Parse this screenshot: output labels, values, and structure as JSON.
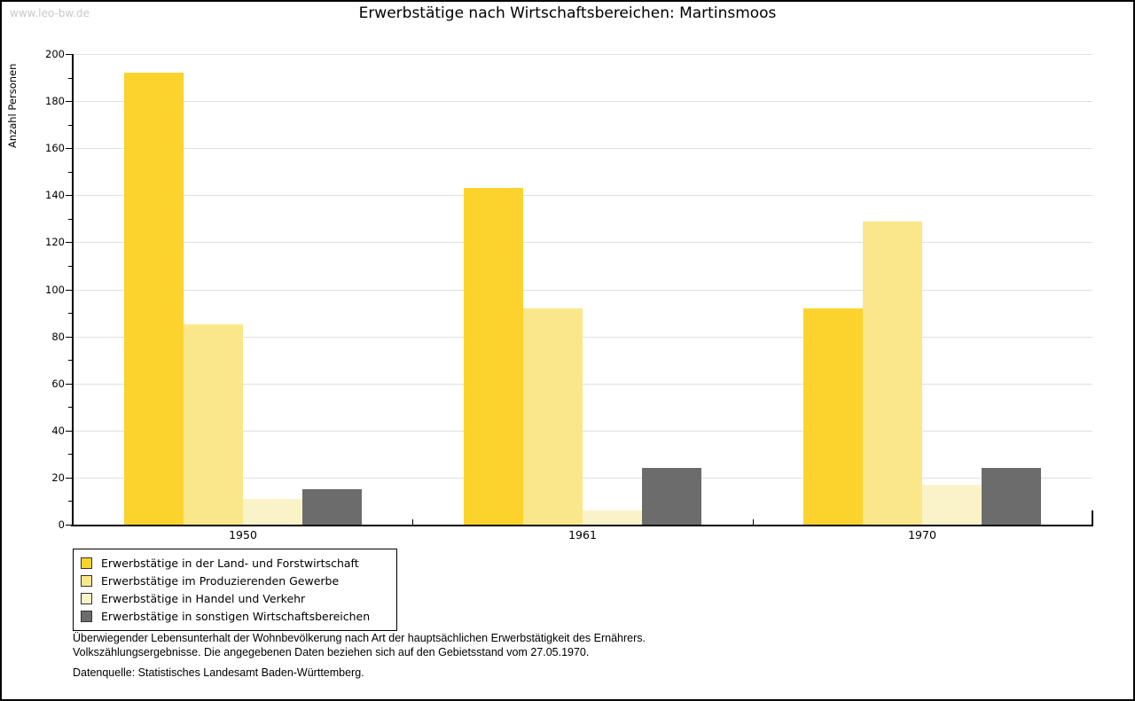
{
  "header": {
    "watermark": "www.leo-bw.de",
    "title": "Erwerbstätige nach Wirtschaftsbereichen: Martinsmoos"
  },
  "chart_data": {
    "type": "bar",
    "title": "Erwerbstätige nach Wirtschaftsbereichen: Martinsmoos",
    "xlabel": "",
    "ylabel": "Anzahl Personen",
    "ylim": [
      0,
      200
    ],
    "ytick_step": 20,
    "yticks": [
      0,
      20,
      40,
      60,
      80,
      100,
      120,
      140,
      160,
      180,
      200
    ],
    "grid": true,
    "legend_position": "bottom-left",
    "categories": [
      "1950",
      "1961",
      "1970"
    ],
    "series": [
      {
        "name": "Erwerbstätige in der Land- und Forstwirtschaft",
        "color": "#FCD32D",
        "values": [
          192,
          143,
          92
        ]
      },
      {
        "name": "Erwerbstätige im Produzierenden Gewerbe",
        "color": "#FAE78A",
        "values": [
          85,
          92,
          129
        ]
      },
      {
        "name": "Erwerbstätige in Handel und Verkehr",
        "color": "#FBF3C8",
        "values": [
          11,
          6,
          17
        ]
      },
      {
        "name": "Erwerbstätige in sonstigen Wirtschaftsbereichen",
        "color": "#6C6C6C",
        "values": [
          15,
          24,
          24
        ]
      }
    ]
  },
  "footer": {
    "line1": "Überwiegender Lebensunterhalt der Wohnbevölkerung nach Art der hauptsächlichen Erwerbstätigkeit des Ernährers.",
    "line2": "Volkszählungsergebnisse. Die angegebenen Daten beziehen sich auf den Gebietsstand vom 27.05.1970.",
    "source": "Datenquelle: Statistisches Landesamt Baden-Württemberg."
  }
}
